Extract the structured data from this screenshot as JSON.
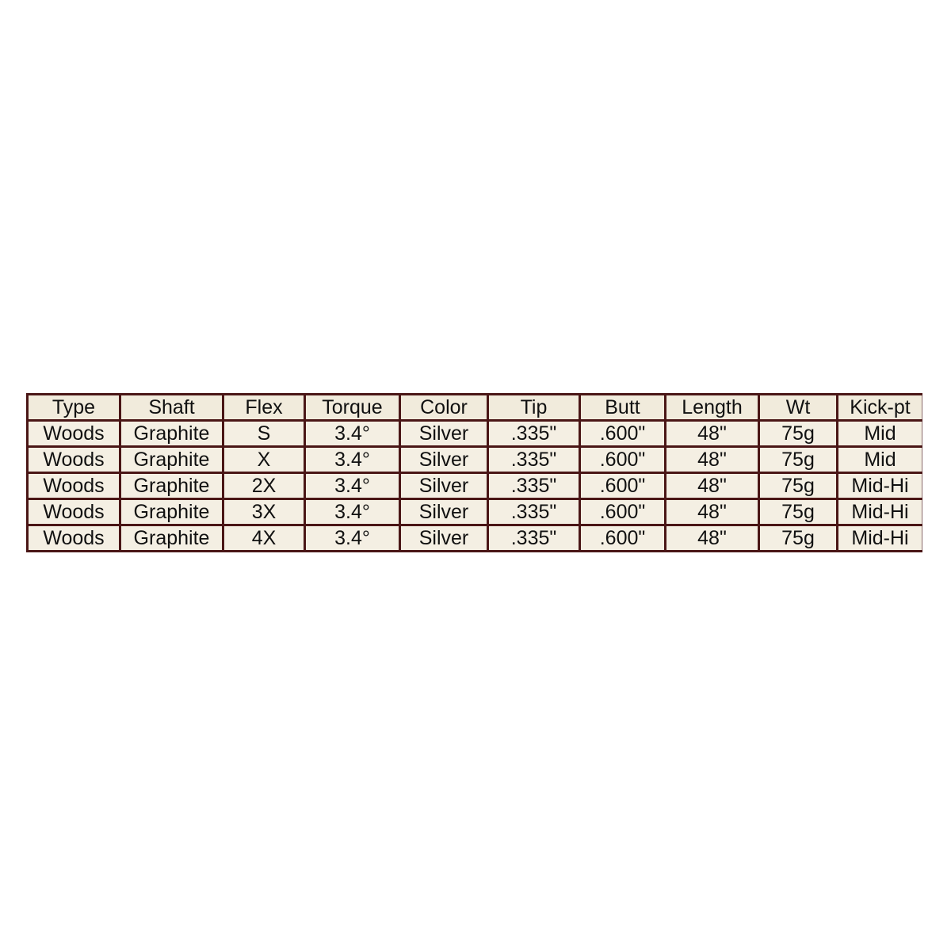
{
  "table": {
    "headers": [
      "Type",
      "Shaft",
      "Flex",
      "Torque",
      "Color",
      "Tip",
      "Butt",
      "Length",
      "Wt",
      "Kick-pt"
    ],
    "rows": [
      [
        "Woods",
        "Graphite",
        "S",
        "3.4°",
        "Silver",
        ".335\"",
        ".600\"",
        "48\"",
        "75g",
        "Mid"
      ],
      [
        "Woods",
        "Graphite",
        "X",
        "3.4°",
        "Silver",
        ".335\"",
        ".600\"",
        "48\"",
        "75g",
        "Mid"
      ],
      [
        "Woods",
        "Graphite",
        "2X",
        "3.4°",
        "Silver",
        ".335\"",
        ".600\"",
        "48\"",
        "75g",
        "Mid-Hi"
      ],
      [
        "Woods",
        "Graphite",
        "3X",
        "3.4°",
        "Silver",
        ".335\"",
        ".600\"",
        "48\"",
        "75g",
        "Mid-Hi"
      ],
      [
        "Woods",
        "Graphite",
        "4X",
        "3.4°",
        "Silver",
        ".335\"",
        ".600\"",
        "48\"",
        "75g",
        "Mid-Hi"
      ]
    ],
    "colors": {
      "border": "#4a1616",
      "cell_background": "#f4efe3",
      "text": "#111111"
    }
  }
}
